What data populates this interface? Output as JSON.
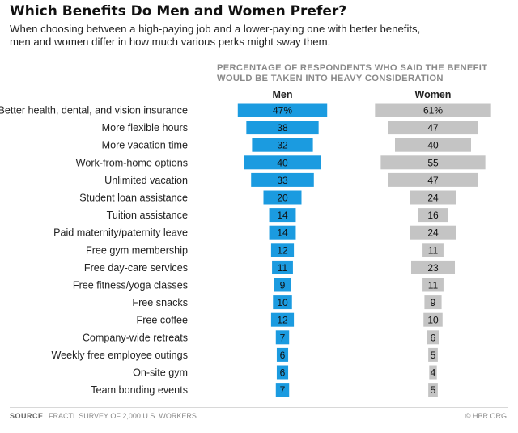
{
  "title": "Which Benefits Do Men and Women Prefer?",
  "subtitle_lines": [
    "When choosing between a high-paying job and a lower-paying one with better benefits,",
    "men and women differ in how much various perks might sway them."
  ],
  "header_note_lines": [
    "PERCENTAGE OF RESPONDENTS WHO SAID THE BENEFIT",
    "WOULD BE TAKEN INTO HEAVY CONSIDERATION"
  ],
  "footer": {
    "source_label": "SOURCE",
    "source_text": "FRACTL SURVEY OF 2,000 U.S. WORKERS",
    "credit": "© HBR.ORG"
  },
  "colors": {
    "men": "#1b9be0",
    "women": "#c4c4c4"
  },
  "chart_data": {
    "type": "bar",
    "orientation": "horizontal",
    "layout": "centered-butterfly (two separate columns)",
    "categories": [
      "Better health, dental, and vision insurance",
      "More flexible hours",
      "More vacation time",
      "Work-from-home options",
      "Unlimited vacation",
      "Student loan assistance",
      "Tuition assistance",
      "Paid maternity/paternity leave",
      "Free gym membership",
      "Free day-care services",
      "Free fitness/yoga classes",
      "Free snacks",
      "Free coffee",
      "Company-wide retreats",
      "Weekly free employee outings",
      "On-site gym",
      "Team bonding events"
    ],
    "series": [
      {
        "name": "Men",
        "values": [
          47,
          38,
          32,
          40,
          33,
          20,
          14,
          14,
          12,
          11,
          9,
          10,
          12,
          7,
          6,
          6,
          7
        ]
      },
      {
        "name": "Women",
        "values": [
          61,
          47,
          40,
          55,
          47,
          24,
          16,
          24,
          11,
          23,
          11,
          9,
          10,
          6,
          5,
          4,
          5
        ]
      }
    ],
    "first_label_suffix": "%"
  }
}
